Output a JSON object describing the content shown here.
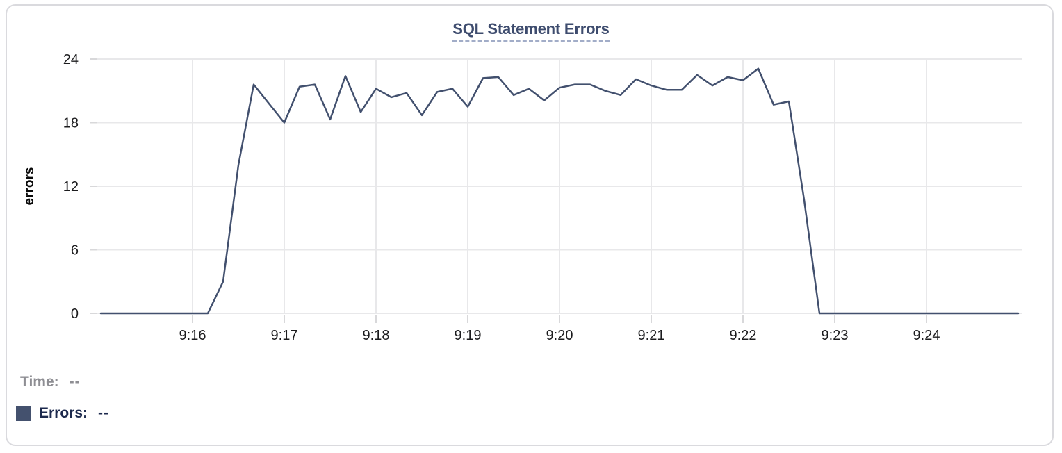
{
  "chart": {
    "title": "SQL Statement Errors",
    "y_axis_label": "errors",
    "title_color": "#3e4c6e",
    "line_color": "#42506e",
    "grid_color": "#e8e8ea",
    "tick_mark_color": "#d8d8da"
  },
  "tooltip": {
    "time_label": "Time:",
    "time_value": "--",
    "errors_label": "Errors:",
    "errors_value": "--",
    "swatch_color": "#44516e"
  },
  "chart_data": {
    "type": "line",
    "title": "SQL Statement Errors",
    "xlabel": "",
    "ylabel": "errors",
    "ylim": [
      0,
      24
    ],
    "yticks": [
      0,
      6,
      12,
      18,
      24
    ],
    "xticks": [
      "9:16",
      "9:17",
      "9:18",
      "9:19",
      "9:20",
      "9:21",
      "9:22",
      "9:23",
      "9:24"
    ],
    "grid": true,
    "legend_position": "below-left",
    "series": [
      {
        "name": "Errors",
        "color": "#42506e",
        "x": [
          "9:15:00",
          "9:15:10",
          "9:15:20",
          "9:15:30",
          "9:15:40",
          "9:15:50",
          "9:16:00",
          "9:16:10",
          "9:16:20",
          "9:16:30",
          "9:16:40",
          "9:16:50",
          "9:17:00",
          "9:17:10",
          "9:17:20",
          "9:17:30",
          "9:17:40",
          "9:17:50",
          "9:18:00",
          "9:18:10",
          "9:18:20",
          "9:18:30",
          "9:18:40",
          "9:18:50",
          "9:19:00",
          "9:19:10",
          "9:19:20",
          "9:19:30",
          "9:19:40",
          "9:19:50",
          "9:20:00",
          "9:20:10",
          "9:20:20",
          "9:20:30",
          "9:20:40",
          "9:20:50",
          "9:21:00",
          "9:21:10",
          "9:21:20",
          "9:21:30",
          "9:21:40",
          "9:21:50",
          "9:22:00",
          "9:22:10",
          "9:22:20",
          "9:22:30",
          "9:22:40",
          "9:22:50",
          "9:23:00",
          "9:23:10",
          "9:23:20",
          "9:23:30",
          "9:23:40",
          "9:23:50",
          "9:24:00",
          "9:24:10",
          "9:24:20",
          "9:24:30",
          "9:24:40",
          "9:24:50",
          "9:25:00"
        ],
        "values": [
          0,
          0,
          0,
          0,
          0,
          0,
          0,
          0,
          3,
          14,
          21.6,
          19.8,
          18,
          21.4,
          21.6,
          18.3,
          22.4,
          19,
          21.2,
          20.4,
          20.8,
          18.7,
          20.9,
          21.2,
          19.5,
          22.2,
          22.3,
          20.6,
          21.2,
          20.1,
          21.3,
          21.6,
          21.6,
          21.0,
          20.6,
          22.1,
          21.5,
          21.1,
          21.1,
          22.5,
          21.5,
          22.3,
          22.0,
          23.1,
          19.7,
          20.0,
          10.7,
          0,
          0,
          0,
          0,
          0,
          0,
          0,
          0,
          0,
          0,
          0,
          0,
          0,
          0
        ]
      }
    ]
  }
}
